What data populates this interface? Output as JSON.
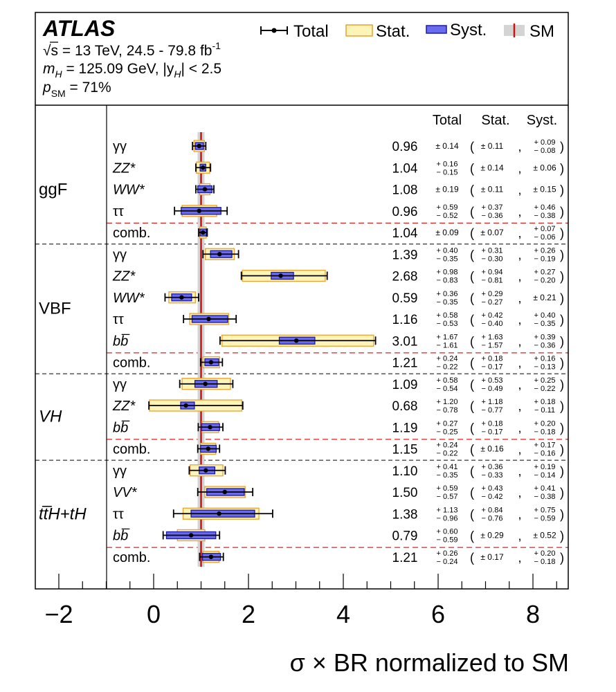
{
  "chart_data": {
    "type": "error-bar-summary",
    "title": "ATLAS",
    "info_lines": [
      {
        "main": "√s = 13 TeV, 24.5 - 79.8 fb",
        "sup": "-1"
      },
      {
        "pre": "m",
        "sub": "H",
        "mid": " = 125.09 GeV, |y",
        "sub2": "H",
        "post": "| < 2.5"
      },
      {
        "pre": "p",
        "sub": "SM",
        "post": " = 71%"
      }
    ],
    "legend": {
      "total": "Total",
      "stat": "Stat.",
      "syst": "Syst.",
      "sm": "SM"
    },
    "column_headers": {
      "total": "Total",
      "stat": "Stat.",
      "syst": "Syst."
    },
    "xlabel": "σ × BR normalized to SM",
    "xlim": [
      -2.5,
      8.75
    ],
    "xticks": [
      -2,
      0,
      2,
      4,
      6,
      8
    ],
    "xtick_labels": [
      "−2",
      "0",
      "2",
      "4",
      "6",
      "8"
    ],
    "sm_value": 1,
    "colors": {
      "stat_fill": "#fff4b8",
      "stat_edge": "#e8a230",
      "syst_fill": "#6b6bef",
      "syst_edge": "#1a1aa8",
      "sm_line": "#cc1111",
      "sm_band": "#d4d4d4",
      "dash_red": "#dd2222",
      "dash_black": "#333333"
    },
    "groups": [
      {
        "name": "ggF",
        "italic": false,
        "rows": [
          {
            "label": "γγ",
            "value": 0.96,
            "value_text": "0.96",
            "total": {
              "sym": "± 0.14"
            },
            "stat": {
              "sym": "± 0.11"
            },
            "syst": {
              "up": "+ 0.09",
              "dn": "− 0.08"
            },
            "err_total": [
              0.14,
              0.14
            ],
            "err_stat": [
              0.11,
              0.11
            ],
            "err_syst": [
              0.09,
              0.08
            ]
          },
          {
            "label": "ZZ*",
            "value": 1.04,
            "value_text": "1.04",
            "total": {
              "up": "+ 0.16",
              "dn": "− 0.15"
            },
            "stat": {
              "sym": "± 0.14"
            },
            "syst": {
              "sym": "± 0.06"
            },
            "err_total": [
              0.16,
              0.15
            ],
            "err_stat": [
              0.14,
              0.14
            ],
            "err_syst": [
              0.06,
              0.06
            ]
          },
          {
            "label": "WW*",
            "value": 1.08,
            "value_text": "1.08",
            "total": {
              "sym": "± 0.19"
            },
            "stat": {
              "sym": "± 0.11"
            },
            "syst": {
              "sym": "± 0.15"
            },
            "err_total": [
              0.19,
              0.19
            ],
            "err_stat": [
              0.11,
              0.11
            ],
            "err_syst": [
              0.15,
              0.15
            ]
          },
          {
            "label": "ττ",
            "value": 0.96,
            "value_text": "0.96",
            "total": {
              "up": "+ 0.59",
              "dn": "− 0.52"
            },
            "stat": {
              "up": "+ 0.37",
              "dn": "− 0.36"
            },
            "syst": {
              "up": "+ 0.46",
              "dn": "− 0.38"
            },
            "err_total": [
              0.59,
              0.52
            ],
            "err_stat": [
              0.37,
              0.36
            ],
            "err_syst": [
              0.46,
              0.38
            ]
          },
          {
            "label": "comb.",
            "comb": true,
            "value": 1.04,
            "value_text": "1.04",
            "total": {
              "sym": "± 0.09"
            },
            "stat": {
              "sym": "± 0.07"
            },
            "syst": {
              "up": "+ 0.07",
              "dn": "− 0.06"
            },
            "err_total": [
              0.09,
              0.09
            ],
            "err_stat": [
              0.07,
              0.07
            ],
            "err_syst": [
              0.07,
              0.06
            ]
          }
        ]
      },
      {
        "name": "VBF",
        "italic": false,
        "rows": [
          {
            "label": "γγ",
            "value": 1.39,
            "value_text": "1.39",
            "total": {
              "up": "+ 0.40",
              "dn": "− 0.35"
            },
            "stat": {
              "up": "+ 0.31",
              "dn": "− 0.30"
            },
            "syst": {
              "up": "+ 0.26",
              "dn": "− 0.19"
            },
            "err_total": [
              0.4,
              0.35
            ],
            "err_stat": [
              0.31,
              0.3
            ],
            "err_syst": [
              0.26,
              0.19
            ]
          },
          {
            "label": "ZZ*",
            "value": 2.68,
            "value_text": "2.68",
            "total": {
              "up": "+ 0.98",
              "dn": "− 0.83"
            },
            "stat": {
              "up": "+ 0.94",
              "dn": "− 0.81"
            },
            "syst": {
              "up": "+ 0.27",
              "dn": "− 0.20"
            },
            "err_total": [
              0.98,
              0.83
            ],
            "err_stat": [
              0.94,
              0.81
            ],
            "err_syst": [
              0.27,
              0.2
            ]
          },
          {
            "label": "WW*",
            "value": 0.59,
            "value_text": "0.59",
            "total": {
              "up": "+ 0.36",
              "dn": "− 0.35"
            },
            "stat": {
              "up": "+ 0.29",
              "dn": "− 0.27"
            },
            "syst": {
              "sym": "± 0.21"
            },
            "err_total": [
              0.36,
              0.35
            ],
            "err_stat": [
              0.29,
              0.27
            ],
            "err_syst": [
              0.21,
              0.21
            ]
          },
          {
            "label": "ττ",
            "value": 1.16,
            "value_text": "1.16",
            "total": {
              "up": "+ 0.58",
              "dn": "− 0.53"
            },
            "stat": {
              "up": "+ 0.42",
              "dn": "− 0.40"
            },
            "syst": {
              "up": "+ 0.40",
              "dn": "− 0.35"
            },
            "err_total": [
              0.58,
              0.53
            ],
            "err_stat": [
              0.42,
              0.4
            ],
            "err_syst": [
              0.4,
              0.35
            ]
          },
          {
            "label": "bb̅",
            "value": 3.01,
            "value_text": "3.01",
            "total": {
              "up": "+ 1.67",
              "dn": "− 1.61"
            },
            "stat": {
              "up": "+ 1.63",
              "dn": "− 1.57"
            },
            "syst": {
              "up": "+ 0.39",
              "dn": "− 0.36"
            },
            "err_total": [
              1.67,
              1.61
            ],
            "err_stat": [
              1.63,
              1.57
            ],
            "err_syst": [
              0.39,
              0.36
            ]
          },
          {
            "label": "comb.",
            "comb": true,
            "value": 1.21,
            "value_text": "1.21",
            "total": {
              "up": "+ 0.24",
              "dn": "− 0.22"
            },
            "stat": {
              "up": "+ 0.18",
              "dn": "− 0.17"
            },
            "syst": {
              "up": "+ 0.16",
              "dn": "− 0.13"
            },
            "err_total": [
              0.24,
              0.22
            ],
            "err_stat": [
              0.18,
              0.17
            ],
            "err_syst": [
              0.16,
              0.13
            ]
          }
        ]
      },
      {
        "name": "VH",
        "italic": true,
        "rows": [
          {
            "label": "γγ",
            "value": 1.09,
            "value_text": "1.09",
            "total": {
              "up": "+ 0.58",
              "dn": "− 0.54"
            },
            "stat": {
              "up": "+ 0.53",
              "dn": "− 0.49"
            },
            "syst": {
              "up": "+ 0.25",
              "dn": "− 0.22"
            },
            "err_total": [
              0.58,
              0.54
            ],
            "err_stat": [
              0.53,
              0.49
            ],
            "err_syst": [
              0.25,
              0.22
            ]
          },
          {
            "label": "ZZ*",
            "value": 0.68,
            "value_text": "0.68",
            "total": {
              "up": "+ 1.20",
              "dn": "− 0.78"
            },
            "stat": {
              "up": "+ 1.18",
              "dn": "− 0.77"
            },
            "syst": {
              "up": "+ 0.18",
              "dn": "− 0.11"
            },
            "err_total": [
              1.2,
              0.78
            ],
            "err_stat": [
              1.18,
              0.77
            ],
            "err_syst": [
              0.18,
              0.11
            ]
          },
          {
            "label": "bb̅",
            "value": 1.19,
            "value_text": "1.19",
            "total": {
              "up": "+ 0.27",
              "dn": "− 0.25"
            },
            "stat": {
              "up": "+ 0.18",
              "dn": "− 0.17"
            },
            "syst": {
              "up": "+ 0.20",
              "dn": "− 0.18"
            },
            "err_total": [
              0.27,
              0.25
            ],
            "err_stat": [
              0.18,
              0.17
            ],
            "err_syst": [
              0.2,
              0.18
            ]
          },
          {
            "label": "comb.",
            "comb": true,
            "value": 1.15,
            "value_text": "1.15",
            "total": {
              "up": "+ 0.24",
              "dn": "− 0.22"
            },
            "stat": {
              "sym": "± 0.16"
            },
            "syst": {
              "up": "+ 0.17",
              "dn": "− 0.16"
            },
            "err_total": [
              0.24,
              0.22
            ],
            "err_stat": [
              0.16,
              0.16
            ],
            "err_syst": [
              0.17,
              0.16
            ]
          }
        ]
      },
      {
        "name": "tt̅H+tH",
        "italic": true,
        "rows": [
          {
            "label": "γγ",
            "value": 1.1,
            "value_text": "1.10",
            "total": {
              "up": "+ 0.41",
              "dn": "− 0.35"
            },
            "stat": {
              "up": "+ 0.36",
              "dn": "− 0.33"
            },
            "syst": {
              "up": "+ 0.19",
              "dn": "− 0.14"
            },
            "err_total": [
              0.41,
              0.35
            ],
            "err_stat": [
              0.36,
              0.33
            ],
            "err_syst": [
              0.19,
              0.14
            ]
          },
          {
            "label": "VV*",
            "value": 1.5,
            "value_text": "1.50",
            "total": {
              "up": "+ 0.59",
              "dn": "− 0.57"
            },
            "stat": {
              "up": "+ 0.43",
              "dn": "− 0.42"
            },
            "syst": {
              "up": "+ 0.41",
              "dn": "− 0.38"
            },
            "err_total": [
              0.59,
              0.57
            ],
            "err_stat": [
              0.43,
              0.42
            ],
            "err_syst": [
              0.41,
              0.38
            ]
          },
          {
            "label": "ττ",
            "value": 1.38,
            "value_text": "1.38",
            "total": {
              "up": "+ 1.13",
              "dn": "− 0.96"
            },
            "stat": {
              "up": "+ 0.84",
              "dn": "− 0.76"
            },
            "syst": {
              "up": "+ 0.75",
              "dn": "− 0.59"
            },
            "err_total": [
              1.13,
              0.96
            ],
            "err_stat": [
              0.84,
              0.76
            ],
            "err_syst": [
              0.75,
              0.59
            ]
          },
          {
            "label": "bb̅",
            "value": 0.79,
            "value_text": "0.79",
            "total": {
              "up": "+ 0.60",
              "dn": "− 0.59"
            },
            "stat": {
              "sym": "± 0.29"
            },
            "syst": {
              "sym": "± 0.52"
            },
            "err_total": [
              0.6,
              0.59
            ],
            "err_stat": [
              0.29,
              0.29
            ],
            "err_syst": [
              0.52,
              0.52
            ]
          },
          {
            "label": "comb.",
            "comb": true,
            "value": 1.21,
            "value_text": "1.21",
            "total": {
              "up": "+ 0.26",
              "dn": "− 0.24"
            },
            "stat": {
              "sym": "± 0.17"
            },
            "syst": {
              "up": "+ 0.20",
              "dn": "− 0.18"
            },
            "err_total": [
              0.26,
              0.24
            ],
            "err_stat": [
              0.17,
              0.17
            ],
            "err_syst": [
              0.2,
              0.18
            ]
          }
        ]
      }
    ]
  }
}
